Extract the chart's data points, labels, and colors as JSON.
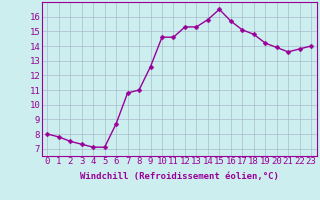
{
  "x": [
    0,
    1,
    2,
    3,
    4,
    5,
    6,
    7,
    8,
    9,
    10,
    11,
    12,
    13,
    14,
    15,
    16,
    17,
    18,
    19,
    20,
    21,
    22,
    23
  ],
  "y": [
    8.0,
    7.8,
    7.5,
    7.3,
    7.1,
    7.1,
    8.7,
    10.8,
    11.0,
    12.6,
    14.6,
    14.6,
    15.3,
    15.3,
    15.8,
    16.5,
    15.7,
    15.1,
    14.8,
    14.2,
    13.9,
    13.6,
    13.8,
    14.0
  ],
  "line_color": "#990099",
  "marker_color": "#990099",
  "bg_color": "#cceeee",
  "grid_color": "#aabbcc",
  "xlabel": "Windchill (Refroidissement éolien,°C)",
  "xlim": [
    -0.5,
    23.5
  ],
  "ylim": [
    6.5,
    17
  ],
  "yticks": [
    7,
    8,
    9,
    10,
    11,
    12,
    13,
    14,
    15,
    16
  ],
  "xticks": [
    0,
    1,
    2,
    3,
    4,
    5,
    6,
    7,
    8,
    9,
    10,
    11,
    12,
    13,
    14,
    15,
    16,
    17,
    18,
    19,
    20,
    21,
    22,
    23
  ],
  "xtick_labels": [
    "0",
    "1",
    "2",
    "3",
    "4",
    "5",
    "6",
    "7",
    "8",
    "9",
    "10",
    "11",
    "12",
    "13",
    "14",
    "15",
    "16",
    "17",
    "18",
    "19",
    "20",
    "21",
    "22",
    "23"
  ],
  "xlabel_fontsize": 6.5,
  "tick_fontsize": 6.5,
  "line_width": 1.0,
  "marker_size": 2.5
}
